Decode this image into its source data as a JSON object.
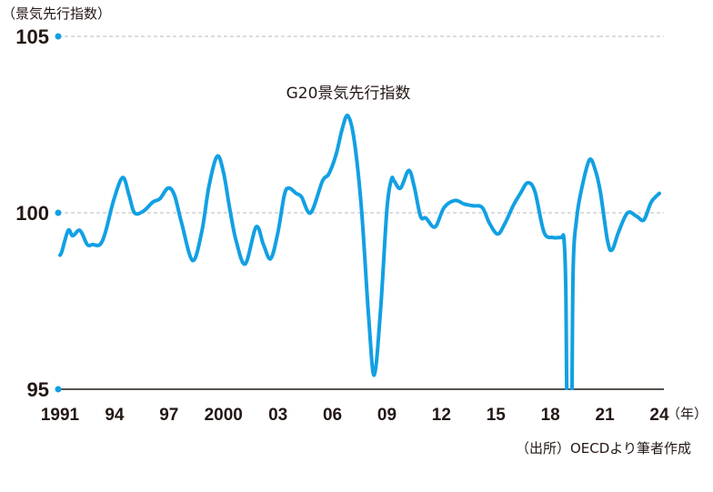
{
  "chart_data": {
    "type": "line",
    "title": "G20景気先行指数",
    "ylabel": "（景気先行指数）",
    "xlabel_unit": "（年）",
    "source": "（出所）OECDより筆者作成",
    "ylim": [
      95,
      105
    ],
    "xlim": [
      1991,
      2024
    ],
    "yticks": [
      {
        "v": 105,
        "label": "105"
      },
      {
        "v": 100,
        "label": "100"
      },
      {
        "v": 95,
        "label": "95"
      }
    ],
    "xticks": [
      {
        "v": 1991,
        "label": "1991"
      },
      {
        "v": 1994,
        "label": "94"
      },
      {
        "v": 1997,
        "label": "97"
      },
      {
        "v": 2000,
        "label": "2000"
      },
      {
        "v": 2003,
        "label": "03"
      },
      {
        "v": 2006,
        "label": "06"
      },
      {
        "v": 2009,
        "label": "09"
      },
      {
        "v": 2012,
        "label": "12"
      },
      {
        "v": 2015,
        "label": "15"
      },
      {
        "v": 2018,
        "label": "18"
      },
      {
        "v": 2021,
        "label": "21"
      },
      {
        "v": 2024,
        "label": "24"
      }
    ],
    "grid": "horizontal dashed at 100 and 105",
    "line_color": "#12a0e3",
    "series": [
      {
        "x": [
          1991.0,
          1991.1,
          1991.45,
          1991.7,
          1992.1,
          1992.5,
          1992.8,
          1993.2,
          1993.5,
          1993.95,
          1994.45,
          1994.8,
          1995.1,
          1995.6,
          1996.1,
          1996.5,
          1996.95,
          1997.3,
          1997.7,
          1998.3,
          1998.8,
          1999.2,
          1999.65,
          2000.0,
          2000.35,
          2000.7,
          2001.2,
          2001.8,
          2002.2,
          2002.6,
          2003.0,
          2003.35,
          2003.6,
          2004.0,
          2004.3,
          2004.8,
          2005.45,
          2005.8,
          2006.2,
          2006.55,
          2006.85,
          2007.2,
          2007.6,
          2008.0,
          2008.3,
          2008.65,
          2009.0,
          2009.25,
          2009.4,
          2009.75,
          2010.2,
          2010.5,
          2010.85,
          2011.15,
          2011.65,
          2012.15,
          2012.75,
          2013.25,
          2013.75,
          2014.25,
          2014.65,
          2015.1,
          2015.5,
          2015.95,
          2016.35,
          2016.75,
          2017.15,
          2017.65,
          2018.15,
          2018.6,
          2018.75,
          2018.85,
          2018.95,
          2019.15,
          2019.25,
          2019.45,
          2019.75,
          2020.15,
          2020.45,
          2020.75,
          2021.15,
          2021.4,
          2021.75,
          2022.25,
          2022.75,
          2023.15,
          2023.55,
          2024.0
        ],
        "values": [
          98.8,
          98.9,
          99.5,
          99.35,
          99.5,
          99.1,
          99.1,
          99.1,
          99.45,
          100.35,
          101.0,
          100.5,
          100.0,
          100.05,
          100.3,
          100.4,
          100.7,
          100.5,
          99.7,
          98.65,
          99.45,
          100.75,
          101.6,
          101.15,
          100.1,
          99.2,
          98.55,
          99.6,
          99.1,
          98.7,
          99.45,
          100.5,
          100.7,
          100.55,
          100.45,
          100.0,
          100.9,
          101.1,
          101.65,
          102.4,
          102.75,
          102.05,
          100.1,
          97.0,
          95.4,
          97.25,
          100.1,
          100.95,
          100.9,
          100.7,
          101.2,
          100.75,
          99.9,
          99.85,
          99.6,
          100.15,
          100.35,
          100.25,
          100.2,
          100.15,
          99.7,
          99.4,
          99.7,
          100.2,
          100.55,
          100.85,
          100.6,
          99.45,
          99.3,
          99.3,
          99.25,
          97.8,
          93.0,
          93.0,
          98.3,
          99.85,
          100.75,
          101.5,
          101.25,
          100.6,
          99.2,
          98.95,
          99.45,
          100.0,
          99.9,
          99.8,
          100.3,
          100.55
        ]
      }
    ]
  }
}
